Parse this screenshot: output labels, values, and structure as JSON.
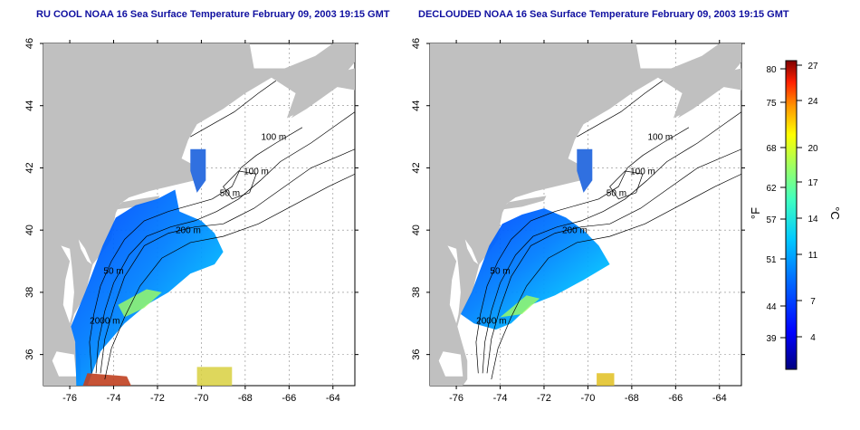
{
  "panels": [
    {
      "title": "RU COOL NOAA 16 Sea Surface Temperature February 09, 2003 19:15 GMT",
      "contour_labels": [
        "100 m",
        "100 m",
        "50 m",
        "200 m",
        "50 m",
        "2000 m"
      ]
    },
    {
      "title": "DECLOUDED NOAA 16 Sea Surface Temperature February 09, 2003 19:15 GMT",
      "contour_labels": [
        "100 m",
        "100 m",
        "50 m",
        "200 m",
        "50 m",
        "2000 m"
      ]
    }
  ],
  "axes": {
    "lon_ticks": [
      "-76",
      "-74",
      "-72",
      "-70",
      "-68",
      "-66",
      "-64"
    ],
    "lat_ticks": [
      "36",
      "38",
      "40",
      "42",
      "44",
      "46"
    ],
    "lon_range": [
      -77.2,
      -63.0
    ],
    "lat_range": [
      35.0,
      46.0
    ]
  },
  "colorbar": {
    "fahrenheit_label": "°F",
    "celsius_label": "°C",
    "fahrenheit_ticks": [
      "80",
      "75",
      "68",
      "62",
      "57",
      "51",
      "44",
      "39"
    ],
    "celsius_ticks": [
      "27",
      "24",
      "20",
      "17",
      "14",
      "11",
      "7",
      "4"
    ],
    "colors": [
      "#00007f",
      "#0000ff",
      "#0066ff",
      "#00c8ff",
      "#40ffc0",
      "#a0ff60",
      "#ffff00",
      "#ff9900",
      "#ff2000",
      "#7f0000"
    ]
  },
  "colors": {
    "land": "#c0c0c0",
    "ocean": "#ffffff",
    "title": "#1010a0"
  }
}
